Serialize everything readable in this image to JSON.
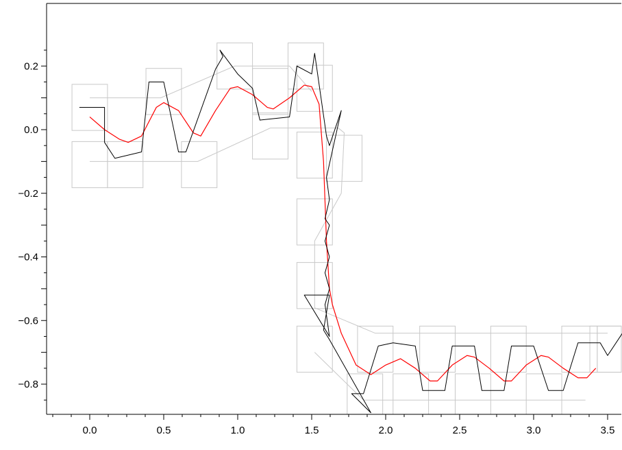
{
  "chart_data": {
    "type": "line",
    "title": "",
    "xlabel": "",
    "ylabel": "",
    "xlim": [
      -0.27,
      3.6
    ],
    "ylim": [
      -0.9,
      0.2
    ],
    "x_ticks": [
      0.0,
      0.5,
      1.0,
      1.5,
      2.0,
      2.5,
      3.0,
      3.5
    ],
    "x_tick_labels": [
      "0.0",
      "0.5",
      "1.0",
      "1.5",
      "2.0",
      "2.5",
      "3.0",
      "3.5"
    ],
    "y_ticks": [
      0.2,
      0.0,
      -0.2,
      -0.4,
      -0.6,
      -0.8
    ],
    "y_tick_labels": [
      "0.2",
      "0.0",
      "−0.2",
      "−0.4",
      "−0.6",
      "−0.8"
    ],
    "grid": false,
    "legend": "none",
    "colors": {
      "smooth": "#ff0000",
      "polygon": "#000000",
      "boxes": "#c8c8c8",
      "guide": "#c8c8c8",
      "axis": "#000000"
    },
    "series": [
      {
        "color": "#ff0000",
        "x": [
          0.0,
          0.1,
          0.2,
          0.26,
          0.35,
          0.45,
          0.5,
          0.6,
          0.7,
          0.75,
          0.85,
          0.95,
          1.0,
          1.1,
          1.2,
          1.24,
          1.35,
          1.45,
          1.5,
          1.55,
          1.58,
          1.6,
          1.62,
          1.64,
          1.7,
          1.8,
          1.9,
          2.0,
          2.1,
          2.2,
          2.3,
          2.35,
          2.45,
          2.55,
          2.6,
          2.7,
          2.8,
          2.85,
          2.95,
          3.05,
          3.1,
          3.2,
          3.3,
          3.36,
          3.42
        ],
        "y": [
          0.04,
          0.0,
          -0.03,
          -0.04,
          -0.02,
          0.07,
          0.085,
          0.06,
          -0.01,
          -0.02,
          0.06,
          0.13,
          0.135,
          0.11,
          0.07,
          0.065,
          0.1,
          0.14,
          0.135,
          0.08,
          -0.1,
          -0.35,
          -0.5,
          -0.55,
          -0.64,
          -0.74,
          -0.77,
          -0.74,
          -0.72,
          -0.75,
          -0.79,
          -0.79,
          -0.74,
          -0.71,
          -0.715,
          -0.75,
          -0.79,
          -0.79,
          -0.74,
          -0.71,
          -0.715,
          -0.75,
          -0.78,
          -0.78,
          -0.75
        ]
      },
      {
        "color": "#000000",
        "x": [
          -0.07,
          0.1,
          0.1,
          0.17,
          0.35,
          0.4,
          0.5,
          0.6,
          0.65,
          0.85,
          0.9,
          0.88,
          1.0,
          1.1,
          1.15,
          1.35,
          1.4,
          1.5,
          1.52,
          1.6,
          1.62,
          1.7,
          1.6,
          1.62,
          1.59,
          1.62,
          1.59,
          1.62,
          1.59,
          1.62,
          1.59,
          1.62,
          1.45,
          1.62,
          1.58,
          1.62,
          1.9,
          1.77,
          1.85,
          1.95,
          2.05,
          2.2,
          2.25,
          2.4,
          2.45,
          2.6,
          2.65,
          2.8,
          2.85,
          3.0,
          3.1,
          3.2,
          3.3,
          3.45,
          3.5,
          3.6
        ],
        "y": [
          0.07,
          0.07,
          -0.04,
          -0.09,
          -0.07,
          0.15,
          0.15,
          -0.07,
          -0.07,
          0.19,
          0.23,
          0.25,
          0.175,
          0.13,
          0.03,
          0.04,
          0.2,
          0.175,
          0.24,
          -0.02,
          -0.05,
          0.06,
          -0.15,
          -0.22,
          -0.28,
          -0.3,
          -0.35,
          -0.4,
          -0.45,
          -0.5,
          -0.55,
          -0.65,
          -0.52,
          -0.52,
          -0.63,
          -0.66,
          -0.89,
          -0.83,
          -0.83,
          -0.68,
          -0.67,
          -0.68,
          -0.82,
          -0.82,
          -0.68,
          -0.68,
          -0.82,
          -0.82,
          -0.68,
          -0.68,
          -0.82,
          -0.82,
          -0.67,
          -0.67,
          -0.71,
          -0.64
        ]
      }
    ]
  }
}
